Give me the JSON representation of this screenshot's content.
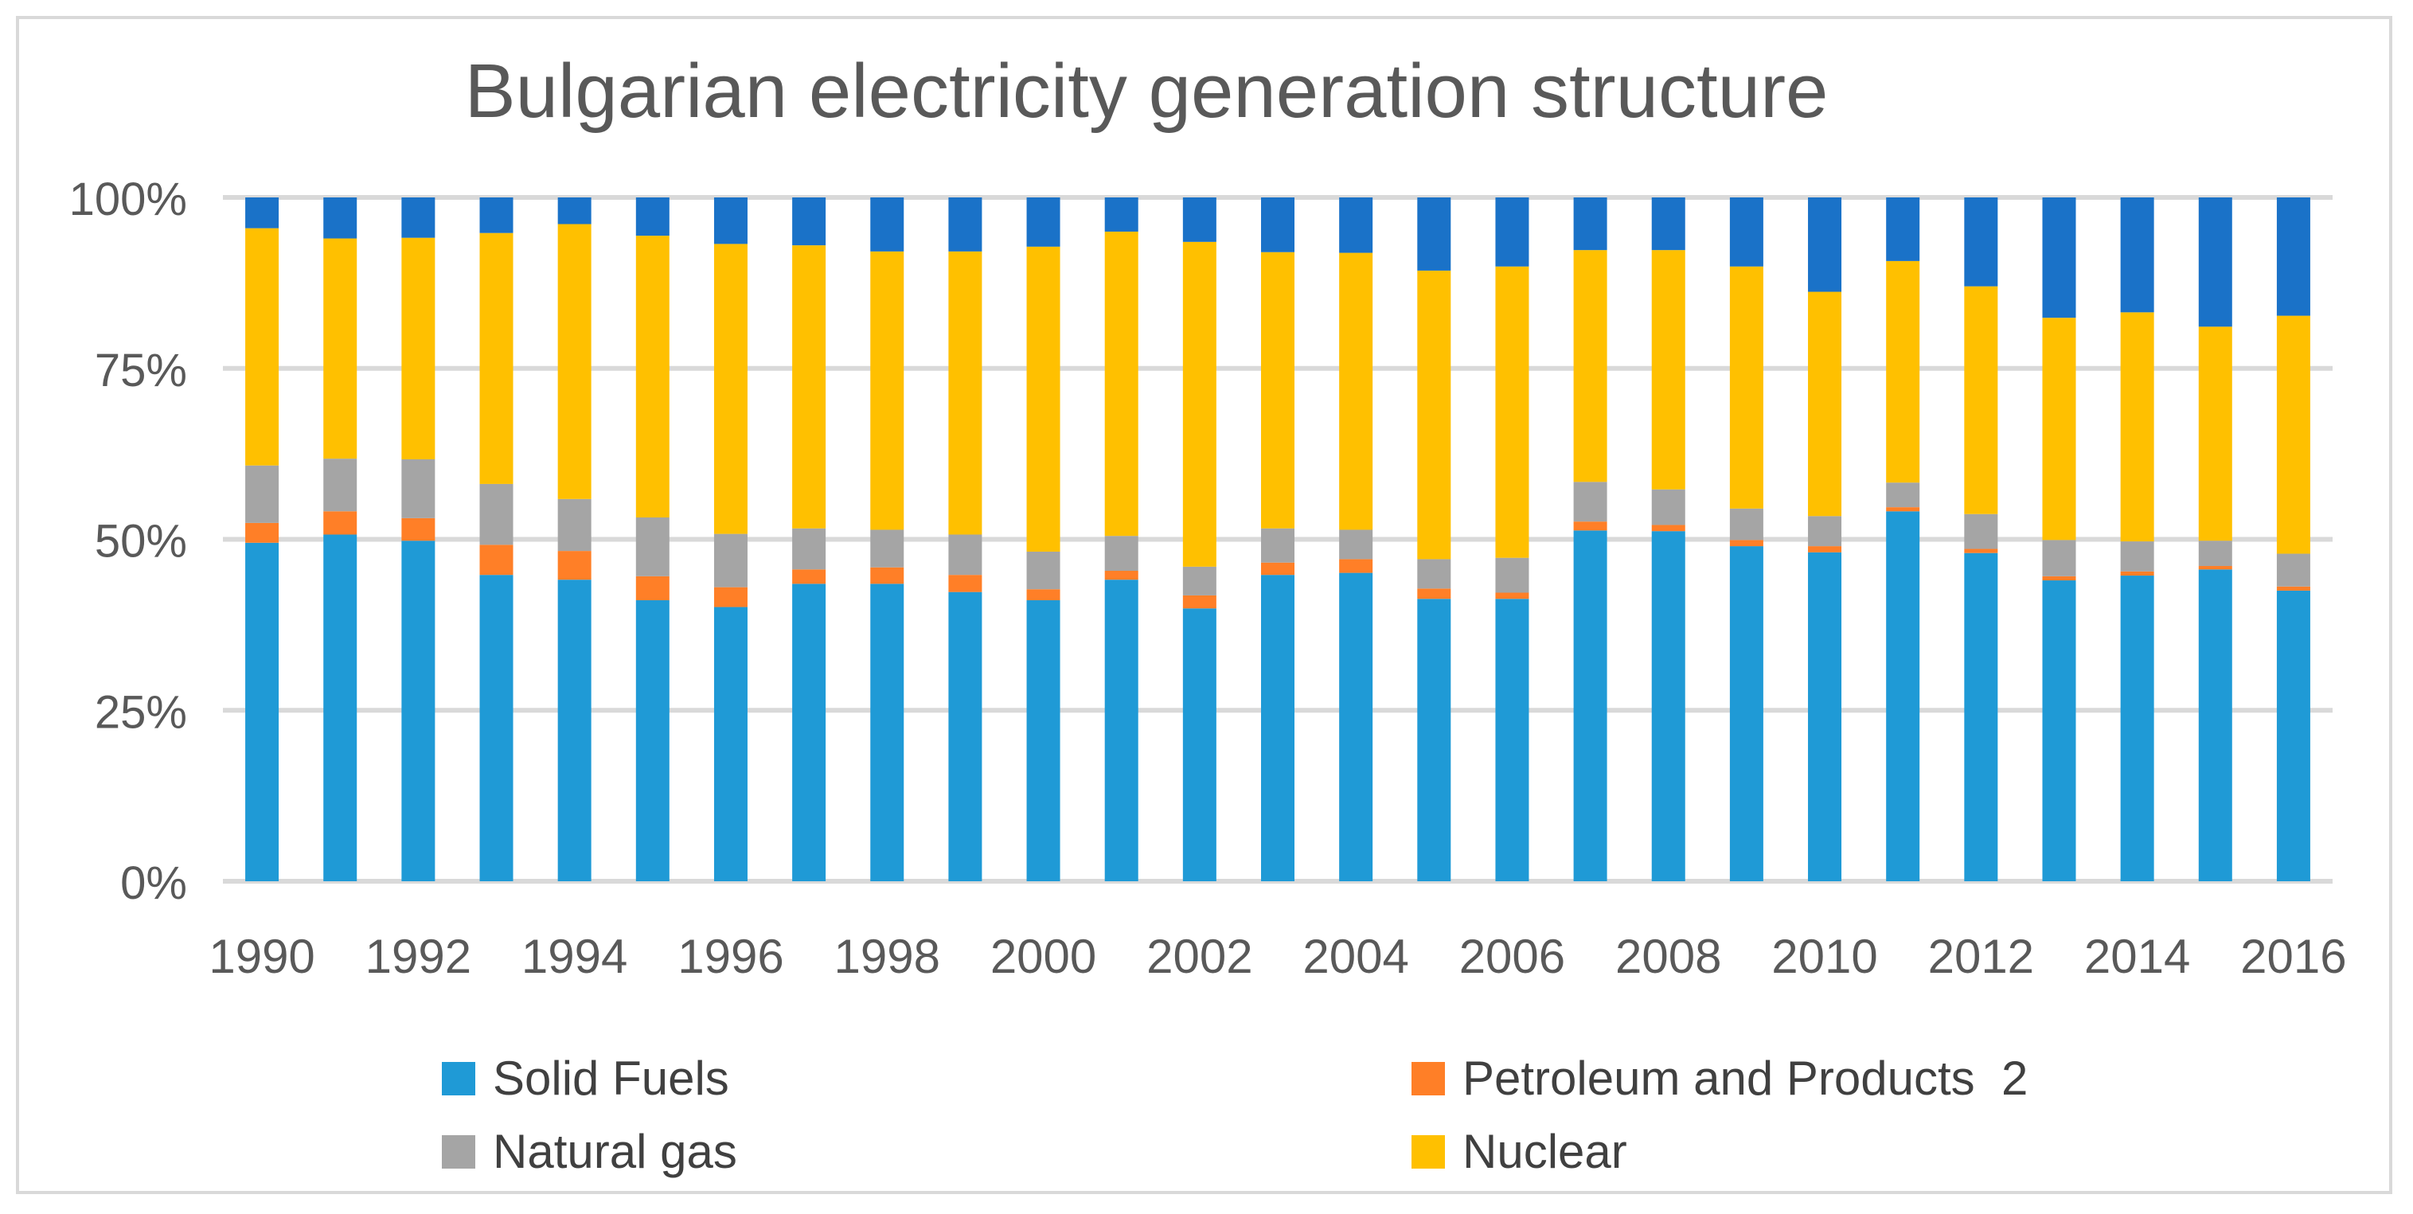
{
  "chart_data": {
    "type": "bar",
    "stacked": true,
    "percent": true,
    "title": "Bulgarian electricity generation structure",
    "xlabel": "",
    "ylabel": "",
    "ylim": [
      0,
      100
    ],
    "y_ticks": [
      "0%",
      "25%",
      "50%",
      "75%",
      "100%"
    ],
    "grid": true,
    "legend_position": "bottom",
    "x": [
      1990,
      1991,
      1992,
      1993,
      1994,
      1995,
      1996,
      1997,
      1998,
      1999,
      2000,
      2001,
      2002,
      2003,
      2004,
      2005,
      2006,
      2007,
      2008,
      2009,
      2010,
      2011,
      2012,
      2013,
      2014,
      2015,
      2016
    ],
    "x_tick_labels": [
      "1990",
      "1992",
      "1994",
      "1996",
      "1998",
      "2000",
      "2002",
      "2004",
      "2006",
      "2008",
      "2010",
      "2012",
      "2014",
      "2016"
    ],
    "series": [
      {
        "name": "Solid Fuels",
        "color": "#1f9ad6",
        "values": [
          49.5,
          50.7,
          49.8,
          44.8,
          44.1,
          41.1,
          40.1,
          43.5,
          43.5,
          42.3,
          41.1,
          44.1,
          39.9,
          44.8,
          45.1,
          41.3,
          41.3,
          51.3,
          51.2,
          49.0,
          48.1,
          54.1,
          48.0,
          44.0,
          44.7,
          45.6,
          42.5
        ]
      },
      {
        "name": "Petroleum and Products  2",
        "color": "#ff7f27",
        "values": [
          2.9,
          3.4,
          3.3,
          4.4,
          4.2,
          3.5,
          2.9,
          2.1,
          2.4,
          2.5,
          1.6,
          1.3,
          1.9,
          1.8,
          2.0,
          1.5,
          0.9,
          1.3,
          0.9,
          0.9,
          0.9,
          0.6,
          0.6,
          0.6,
          0.6,
          0.5,
          0.6
        ]
      },
      {
        "name": "Natural gas",
        "color": "#a5a5a5",
        "values": [
          8.4,
          7.7,
          8.6,
          8.9,
          7.6,
          8.6,
          7.8,
          6.0,
          5.5,
          5.9,
          5.5,
          5.1,
          4.2,
          5.0,
          4.3,
          4.3,
          5.1,
          5.8,
          5.2,
          4.6,
          4.4,
          3.6,
          5.1,
          5.3,
          4.4,
          3.7,
          4.8
        ]
      },
      {
        "name": "Nuclear",
        "color": "#ffc000",
        "values": [
          34.7,
          32.2,
          32.4,
          36.7,
          40.2,
          41.2,
          42.4,
          41.4,
          40.7,
          41.4,
          44.6,
          44.5,
          47.5,
          40.4,
          40.5,
          42.2,
          42.6,
          33.9,
          35.0,
          35.4,
          32.8,
          32.4,
          33.3,
          32.5,
          33.5,
          31.3,
          34.8
        ]
      },
      {
        "name": "",
        "color": "#1a72c8",
        "values": [
          4.5,
          6.0,
          5.9,
          5.2,
          3.9,
          5.6,
          6.8,
          7.0,
          7.9,
          7.9,
          7.2,
          5.0,
          6.5,
          8.0,
          8.1,
          10.7,
          10.1,
          7.7,
          7.7,
          10.1,
          13.8,
          9.3,
          13.0,
          17.6,
          16.8,
          18.9,
          17.3
        ]
      }
    ]
  },
  "legend": [
    {
      "label": "Solid Fuels",
      "color": "#1f9ad6"
    },
    {
      "label": "Petroleum and Products  2",
      "color": "#ff7f27"
    },
    {
      "label": "Natural gas",
      "color": "#a5a5a5"
    },
    {
      "label": "Nuclear",
      "color": "#ffc000"
    }
  ]
}
